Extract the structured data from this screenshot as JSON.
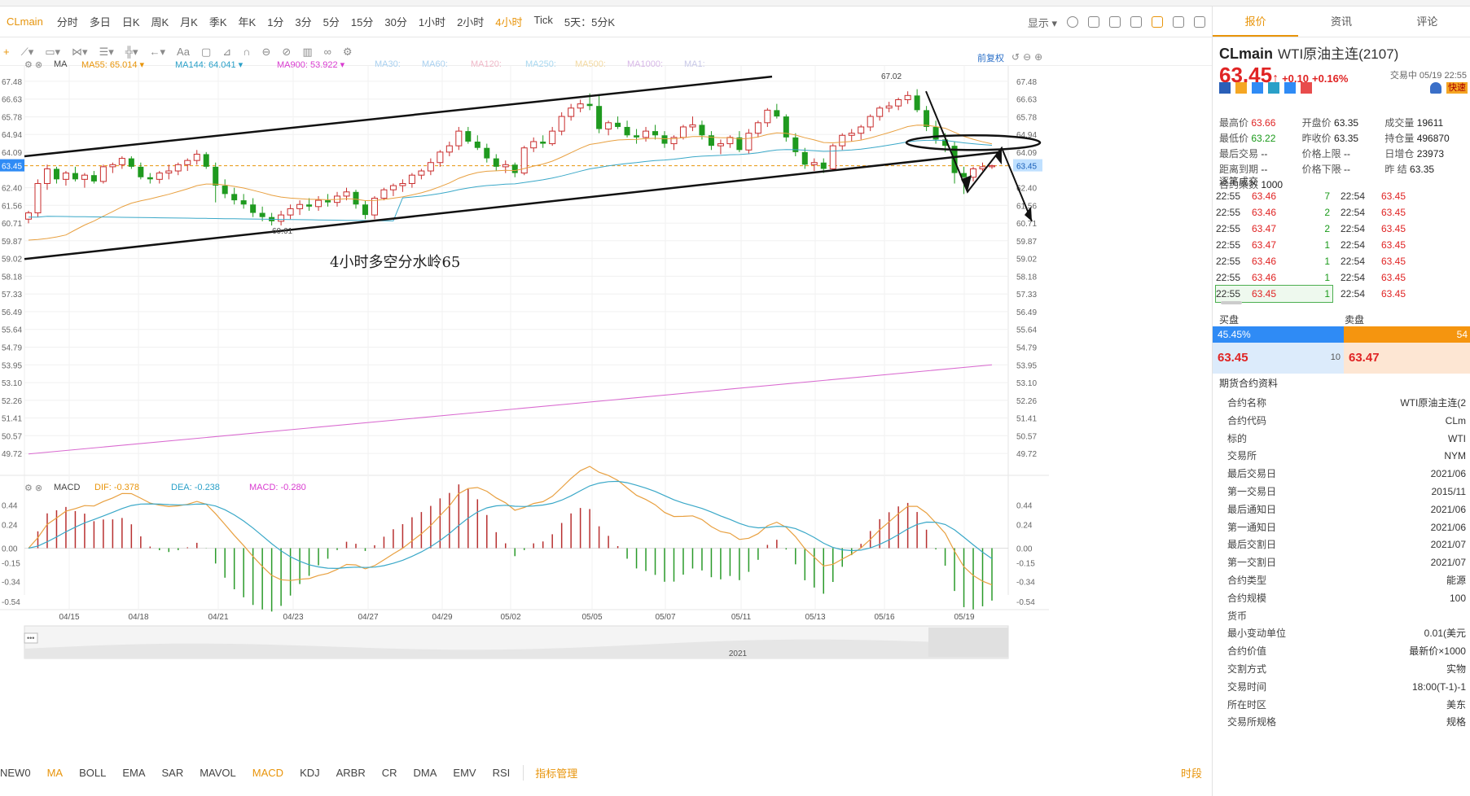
{
  "toolbar": {
    "symbol": "CLmain",
    "timeframes": [
      "分时",
      "多日",
      "日K",
      "周K",
      "月K",
      "季K",
      "年K",
      "1分",
      "3分",
      "5分",
      "15分",
      "30分",
      "1小时",
      "2小时",
      "4小时",
      "Tick",
      "5天：5分K"
    ],
    "active_timeframe": "4小时",
    "display_label": "显示"
  },
  "ma_legend": {
    "name": "MA",
    "items": [
      {
        "label": "MA55: 65.014",
        "color": "#e8940a"
      },
      {
        "label": "MA144: 64.041",
        "color": "#2aa0c8"
      },
      {
        "label": "MA900: 53.922",
        "color": "#d93bd0"
      },
      {
        "label": "MA30:",
        "color": "#a8d0f0"
      },
      {
        "label": "MA60:",
        "color": "#a8d0f0"
      },
      {
        "label": "MA120:",
        "color": "#f0b8c8"
      },
      {
        "label": "MA250:",
        "color": "#a8d8f0"
      },
      {
        "label": "MA500:",
        "color": "#f3d9a0"
      },
      {
        "label": "MA1000:",
        "color": "#d8b8e8"
      },
      {
        "label": "MA1:",
        "color": "#c8c8e8"
      }
    ],
    "adjust_label": "前复权"
  },
  "price_axis": {
    "ticks": [
      "67.48",
      "66.63",
      "65.78",
      "64.94",
      "64.09",
      "63.45",
      "62.40",
      "61.56",
      "60.71",
      "59.87",
      "59.02",
      "58.18",
      "57.33",
      "56.49",
      "55.64",
      "54.79",
      "53.95",
      "53.10",
      "52.26",
      "51.41",
      "50.57",
      "49.72"
    ],
    "current": "63.45"
  },
  "chart_data": {
    "type": "candlestick",
    "title": "",
    "annotation_text": "4小时多空分水岭65",
    "high_label": "67.02",
    "low_label": "60.61",
    "x_ticks": [
      "04/15",
      "04/18",
      "04/21",
      "04/23",
      "04/27",
      "04/29",
      "05/02",
      "05/05",
      "05/07",
      "05/11",
      "05/13",
      "05/16",
      "05/19"
    ],
    "year_label": "2021",
    "ylim": [
      49.3,
      67.9
    ],
    "candles": [
      [
        60.9,
        61.3,
        60.7,
        61.2
      ],
      [
        61.2,
        62.8,
        61.0,
        62.6
      ],
      [
        62.6,
        63.5,
        62.3,
        63.3
      ],
      [
        63.3,
        63.4,
        62.6,
        62.8
      ],
      [
        62.8,
        63.2,
        62.5,
        63.1
      ],
      [
        63.1,
        63.4,
        62.7,
        62.8
      ],
      [
        62.8,
        63.1,
        62.4,
        63.0
      ],
      [
        63.0,
        63.2,
        62.6,
        62.7
      ],
      [
        62.7,
        63.5,
        62.6,
        63.4
      ],
      [
        63.4,
        63.6,
        63.1,
        63.5
      ],
      [
        63.5,
        63.9,
        63.3,
        63.8
      ],
      [
        63.8,
        63.9,
        63.3,
        63.4
      ],
      [
        63.4,
        63.6,
        62.8,
        62.9
      ],
      [
        62.9,
        63.1,
        62.6,
        62.8
      ],
      [
        62.8,
        63.2,
        62.6,
        63.1
      ],
      [
        63.1,
        63.5,
        62.8,
        63.2
      ],
      [
        63.2,
        63.6,
        63.0,
        63.5
      ],
      [
        63.5,
        63.8,
        63.2,
        63.7
      ],
      [
        63.7,
        64.2,
        63.5,
        64.0
      ],
      [
        64.0,
        64.1,
        63.3,
        63.4
      ],
      [
        63.4,
        63.6,
        61.7,
        62.5
      ],
      [
        62.5,
        62.8,
        61.9,
        62.1
      ],
      [
        62.1,
        62.4,
        61.6,
        61.8
      ],
      [
        61.8,
        62.1,
        61.4,
        61.6
      ],
      [
        61.6,
        61.9,
        61.0,
        61.2
      ],
      [
        61.2,
        61.5,
        60.8,
        61.0
      ],
      [
        61.0,
        61.2,
        60.6,
        60.8
      ],
      [
        60.8,
        61.3,
        60.6,
        61.1
      ],
      [
        61.1,
        61.6,
        60.9,
        61.4
      ],
      [
        61.4,
        61.8,
        61.1,
        61.6
      ],
      [
        61.6,
        61.9,
        61.3,
        61.5
      ],
      [
        61.5,
        62.0,
        61.3,
        61.8
      ],
      [
        61.8,
        62.1,
        61.5,
        61.7
      ],
      [
        61.7,
        62.2,
        61.5,
        62.0
      ],
      [
        62.0,
        62.4,
        61.8,
        62.2
      ],
      [
        62.2,
        62.3,
        61.4,
        61.6
      ],
      [
        61.6,
        61.8,
        60.9,
        61.1
      ],
      [
        61.1,
        62.0,
        60.9,
        61.9
      ],
      [
        61.9,
        62.4,
        61.8,
        62.3
      ],
      [
        62.3,
        62.6,
        62.0,
        62.5
      ],
      [
        62.5,
        62.8,
        62.2,
        62.6
      ],
      [
        62.6,
        63.1,
        62.4,
        63.0
      ],
      [
        63.0,
        63.3,
        62.8,
        63.2
      ],
      [
        63.2,
        63.8,
        63.0,
        63.6
      ],
      [
        63.6,
        64.2,
        63.4,
        64.1
      ],
      [
        64.1,
        64.6,
        63.9,
        64.4
      ],
      [
        64.4,
        65.3,
        64.2,
        65.1
      ],
      [
        65.1,
        65.3,
        64.5,
        64.6
      ],
      [
        64.6,
        64.9,
        64.2,
        64.3
      ],
      [
        64.3,
        64.5,
        63.6,
        63.8
      ],
      [
        63.8,
        64.0,
        63.2,
        63.4
      ],
      [
        63.4,
        63.7,
        63.1,
        63.5
      ],
      [
        63.5,
        63.6,
        62.9,
        63.1
      ],
      [
        63.1,
        64.4,
        63.0,
        64.3
      ],
      [
        64.3,
        64.8,
        64.1,
        64.6
      ],
      [
        64.6,
        64.9,
        64.3,
        64.5
      ],
      [
        64.5,
        65.3,
        64.4,
        65.1
      ],
      [
        65.1,
        66.0,
        64.9,
        65.8
      ],
      [
        65.8,
        66.4,
        65.6,
        66.2
      ],
      [
        66.2,
        66.6,
        66.0,
        66.4
      ],
      [
        66.4,
        66.9,
        66.1,
        66.3
      ],
      [
        66.3,
        66.8,
        65.0,
        65.2
      ],
      [
        65.2,
        65.6,
        64.9,
        65.5
      ],
      [
        65.5,
        65.8,
        65.2,
        65.3
      ],
      [
        65.3,
        65.6,
        64.8,
        64.9
      ],
      [
        64.9,
        65.2,
        64.5,
        64.8
      ],
      [
        64.8,
        65.3,
        64.6,
        65.1
      ],
      [
        65.1,
        65.4,
        64.7,
        64.9
      ],
      [
        64.9,
        65.1,
        64.3,
        64.5
      ],
      [
        64.5,
        64.9,
        64.2,
        64.8
      ],
      [
        64.8,
        65.4,
        64.7,
        65.3
      ],
      [
        65.3,
        65.8,
        65.1,
        65.4
      ],
      [
        65.4,
        65.6,
        64.7,
        64.9
      ],
      [
        64.9,
        65.1,
        64.2,
        64.4
      ],
      [
        64.4,
        64.7,
        64.0,
        64.5
      ],
      [
        64.5,
        64.9,
        64.3,
        64.8
      ],
      [
        64.8,
        65.1,
        64.1,
        64.2
      ],
      [
        64.2,
        65.2,
        64.0,
        65.0
      ],
      [
        65.0,
        65.6,
        64.8,
        65.5
      ],
      [
        65.5,
        66.2,
        65.3,
        66.1
      ],
      [
        66.1,
        66.4,
        65.7,
        65.8
      ],
      [
        65.8,
        65.9,
        64.6,
        64.8
      ],
      [
        64.8,
        65.0,
        63.9,
        64.1
      ],
      [
        64.1,
        64.3,
        63.3,
        63.5
      ],
      [
        63.5,
        63.8,
        63.2,
        63.6
      ],
      [
        63.6,
        63.8,
        63.1,
        63.3
      ],
      [
        63.3,
        64.5,
        63.2,
        64.4
      ],
      [
        64.4,
        65.0,
        64.2,
        64.9
      ],
      [
        64.9,
        65.2,
        64.6,
        65.0
      ],
      [
        65.0,
        65.4,
        64.7,
        65.3
      ],
      [
        65.3,
        65.9,
        65.1,
        65.8
      ],
      [
        65.8,
        66.3,
        65.6,
        66.2
      ],
      [
        66.2,
        66.5,
        66.0,
        66.3
      ],
      [
        66.3,
        66.7,
        66.1,
        66.6
      ],
      [
        66.6,
        67.0,
        66.4,
        66.8
      ],
      [
        66.8,
        67.1,
        66.0,
        66.1
      ],
      [
        66.1,
        66.3,
        65.1,
        65.3
      ],
      [
        65.3,
        65.6,
        64.5,
        64.7
      ],
      [
        64.7,
        65.0,
        64.1,
        64.4
      ],
      [
        64.4,
        64.6,
        62.6,
        63.1
      ],
      [
        63.1,
        63.4,
        62.1,
        62.9
      ],
      [
        62.9,
        63.4,
        62.7,
        63.3
      ],
      [
        63.3,
        63.6,
        63.2,
        63.4
      ],
      [
        63.4,
        63.5,
        63.3,
        63.45
      ]
    ]
  },
  "macd": {
    "name": "MACD",
    "dif": "DIF: -0.378",
    "dea": "DEA: -0.238",
    "macd": "MACD: -0.280",
    "ticks": [
      "0.44",
      "0.24",
      "0.00",
      "-0.15",
      "-0.34",
      "-0.54"
    ]
  },
  "bottom_indicators": {
    "items": [
      "NEW0",
      "MA",
      "BOLL",
      "EMA",
      "SAR",
      "MAVOL",
      "MACD",
      "KDJ",
      "ARBR",
      "CR",
      "DMA",
      "EMV",
      "RSI"
    ],
    "active": [
      "MA",
      "MACD"
    ],
    "manager": "指标管理",
    "time_label": "时段"
  },
  "panel": {
    "tabs": [
      "报价",
      "资讯",
      "评论"
    ],
    "active_tab": "报价",
    "symbol": "CLmain",
    "name": "WTI原油主连(2107)",
    "price": "63.45",
    "change": "+0.10",
    "change_pct": "+0.16%",
    "status_time": "交易中 05/19 22:55",
    "quick_label": "快速",
    "stats": [
      [
        [
          "最高价",
          "63.66",
          "red"
        ],
        [
          "开盘价",
          "63.35",
          "dk"
        ],
        [
          "成交量",
          "19611",
          "dk"
        ]
      ],
      [
        [
          "最低价",
          "63.22",
          "grn"
        ],
        [
          "昨收价",
          "63.35",
          "dk"
        ],
        [
          "持仓量",
          "496870",
          "dk"
        ]
      ],
      [
        [
          "最后交易",
          "--",
          "dk"
        ],
        [
          "价格上限",
          "--",
          "dk"
        ],
        [
          "日增仓",
          "23973",
          "dk"
        ]
      ],
      [
        [
          "距离到期",
          "--",
          "dk"
        ],
        [
          "价格下限",
          "--",
          "dk"
        ],
        [
          "昨 结",
          "63.35",
          "dk"
        ]
      ],
      [
        [
          "合约乘数",
          "1000",
          "dk"
        ]
      ]
    ],
    "ticks_title": "逐笔成交",
    "ticks": [
      [
        "22:55",
        "63.46",
        "7",
        "22:54",
        "63.45"
      ],
      [
        "22:55",
        "63.46",
        "2",
        "22:54",
        "63.45"
      ],
      [
        "22:55",
        "63.47",
        "2",
        "22:54",
        "63.45"
      ],
      [
        "22:55",
        "63.47",
        "1",
        "22:54",
        "63.45"
      ],
      [
        "22:55",
        "63.46",
        "1",
        "22:54",
        "63.45"
      ],
      [
        "22:55",
        "63.46",
        "1",
        "22:54",
        "63.45"
      ],
      [
        "22:55",
        "63.45",
        "1",
        "22:54",
        "63.45"
      ]
    ],
    "buy_label": "买盘",
    "sell_label": "卖盘",
    "buy_pct": "45.45%",
    "sell_pct": "54",
    "bid_price": "63.45",
    "bid_vol": "10",
    "ask_price": "63.47",
    "specs_title": "期货合约资料",
    "specs": [
      [
        "合约名称",
        "WTI原油主连(2"
      ],
      [
        "合约代码",
        "CLm"
      ],
      [
        "标的",
        "WTI"
      ],
      [
        "交易所",
        "NYM"
      ],
      [
        "最后交易日",
        "2021/06"
      ],
      [
        "第一交易日",
        "2015/11"
      ],
      [
        "最后通知日",
        "2021/06"
      ],
      [
        "第一通知日",
        "2021/06"
      ],
      [
        "最后交割日",
        "2021/07"
      ],
      [
        "第一交割日",
        "2021/07"
      ],
      [
        "合约类型",
        "能源"
      ],
      [
        "合约规模",
        "100"
      ],
      [
        "货币",
        ""
      ],
      [
        "最小变动单位",
        "0.01(美元"
      ],
      [
        "合约价值",
        "最新价×1000"
      ],
      [
        "交割方式",
        "实物"
      ],
      [
        "交易时间",
        "18:00(T-1)-1"
      ],
      [
        "所在时区",
        "美东"
      ],
      [
        "交易所规格",
        "规格"
      ]
    ]
  }
}
